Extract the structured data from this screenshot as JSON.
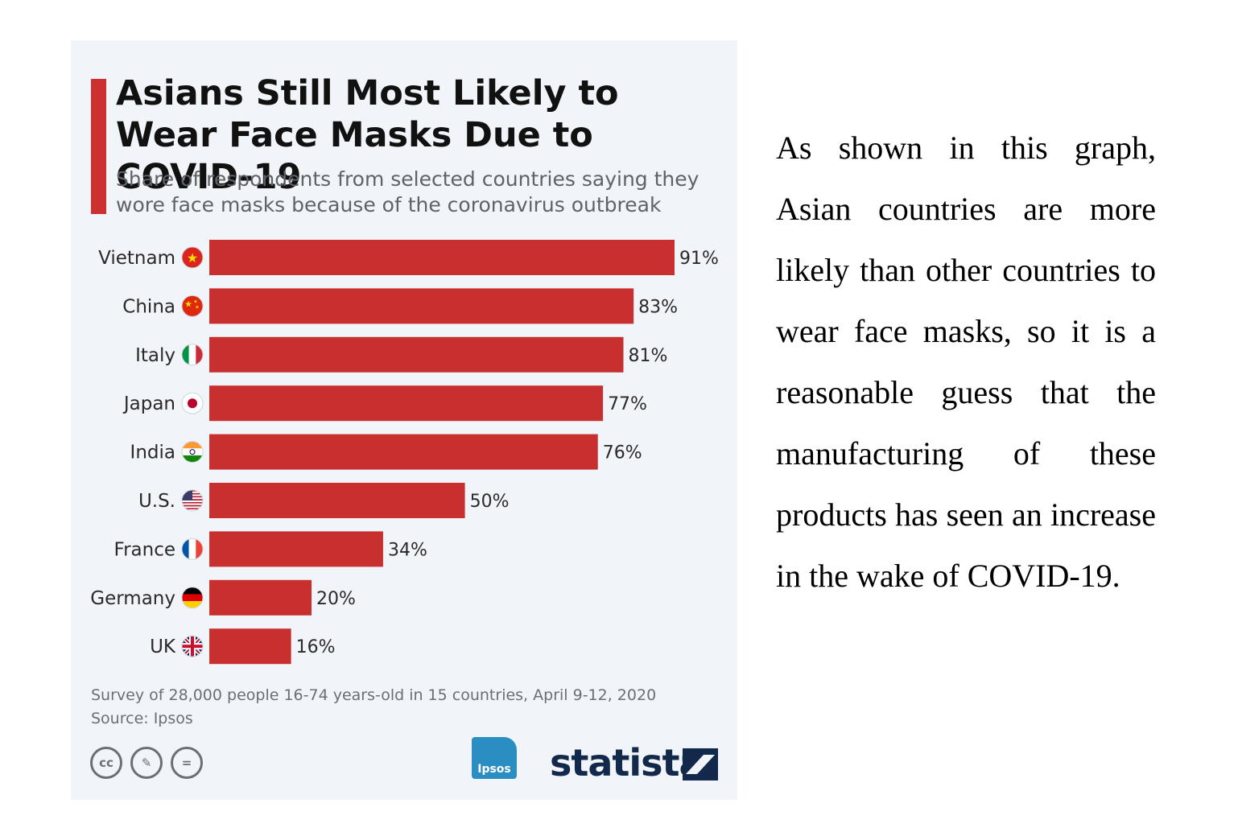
{
  "chart_data": {
    "type": "bar",
    "orientation": "horizontal",
    "title": "Asians Still Most Likely to Wear Face Masks Due to COVID-19",
    "subtitle": "Share of respondents from selected countries saying they wore face masks because of the coronavirus outbreak",
    "categories": [
      "Vietnam",
      "China",
      "Italy",
      "Japan",
      "India",
      "U.S.",
      "France",
      "Germany",
      "UK"
    ],
    "values": [
      91,
      83,
      81,
      77,
      76,
      50,
      34,
      20,
      16
    ],
    "value_labels": [
      "91%",
      "83%",
      "81%",
      "77%",
      "76%",
      "50%",
      "34%",
      "20%",
      "16%"
    ],
    "flags": [
      "vietnam-flag-icon",
      "china-flag-icon",
      "italy-flag-icon",
      "japan-flag-icon",
      "india-flag-icon",
      "us-flag-icon",
      "france-flag-icon",
      "germany-flag-icon",
      "uk-flag-icon"
    ],
    "bar_color": "#c8302f",
    "xlim": [
      0,
      91
    ],
    "grid": false,
    "legend": "none"
  },
  "footer": {
    "note_line1": "Survey of 28,000 people 16-74 years-old in 15 countries, April 9-12, 2020",
    "note_line2": "Source: Ipsos",
    "license_icons": [
      "creative-commons-icon",
      "attribution-icon",
      "no-derivatives-icon"
    ],
    "ipsos_logo": "Ipsos",
    "statista_logo": "statista"
  },
  "paragraph": "As shown in this graph, Asian countries are more likely than other countries to wear face masks, so it is a reasonable guess that the manufacturing of these products has seen an increase in the wake of COVID-19.",
  "colors": {
    "card_bg": "#f1f4f8",
    "accent": "#cc3030",
    "statista_navy": "#13294b",
    "ipsos_blue": "#2a8ec3"
  }
}
